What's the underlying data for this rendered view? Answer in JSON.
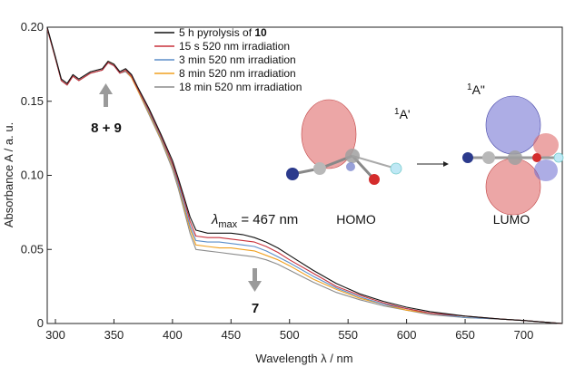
{
  "chart_data": {
    "type": "line",
    "title": "",
    "xlabel": "Wavelength λ / nm",
    "ylabel": "Absorbance A / a. u.",
    "xlim": [
      293,
      733
    ],
    "ylim": [
      0,
      0.2
    ],
    "x_ticks": [
      "300",
      "350",
      "400",
      "450",
      "500",
      "550",
      "600",
      "650",
      "700"
    ],
    "y_ticks": [
      "0",
      "0.05",
      "0.10",
      "0.15",
      "0.20"
    ],
    "grid": false,
    "legend_position": "top-center",
    "series": [
      {
        "name": "5 h pyrolysis of 10",
        "color": "#111111",
        "x": [
          293,
          300,
          305,
          310,
          315,
          320,
          330,
          340,
          345,
          350,
          355,
          360,
          365,
          370,
          380,
          390,
          400,
          405,
          410,
          415,
          420,
          430,
          440,
          450,
          460,
          470,
          480,
          490,
          500,
          520,
          540,
          560,
          580,
          600,
          620,
          650,
          680,
          700,
          733
        ],
        "y": [
          0.2,
          0.18,
          0.165,
          0.162,
          0.168,
          0.165,
          0.17,
          0.172,
          0.177,
          0.175,
          0.17,
          0.172,
          0.168,
          0.16,
          0.145,
          0.128,
          0.11,
          0.098,
          0.085,
          0.072,
          0.063,
          0.061,
          0.061,
          0.061,
          0.06,
          0.058,
          0.055,
          0.051,
          0.046,
          0.036,
          0.027,
          0.02,
          0.015,
          0.011,
          0.008,
          0.005,
          0.003,
          0.002,
          0.0
        ]
      },
      {
        "name": "15 s 520 nm irradiation",
        "color": "#c8323c",
        "x": [
          293,
          300,
          305,
          310,
          315,
          320,
          330,
          340,
          345,
          350,
          355,
          360,
          365,
          370,
          380,
          390,
          400,
          405,
          410,
          415,
          420,
          430,
          440,
          450,
          460,
          470,
          480,
          490,
          500,
          520,
          540,
          560,
          580,
          600,
          620,
          650,
          680,
          700,
          733
        ],
        "y": [
          0.199,
          0.179,
          0.164,
          0.161,
          0.167,
          0.164,
          0.169,
          0.171,
          0.176,
          0.174,
          0.169,
          0.171,
          0.167,
          0.159,
          0.144,
          0.127,
          0.108,
          0.096,
          0.083,
          0.069,
          0.059,
          0.058,
          0.058,
          0.057,
          0.056,
          0.055,
          0.052,
          0.048,
          0.043,
          0.034,
          0.025,
          0.019,
          0.014,
          0.01,
          0.007,
          0.005,
          0.003,
          0.002,
          0.0
        ]
      },
      {
        "name": "3 min 520 nm irradiation",
        "color": "#5b8ec9",
        "x": [
          293,
          300,
          305,
          310,
          315,
          320,
          330,
          340,
          345,
          350,
          355,
          360,
          365,
          370,
          380,
          390,
          400,
          405,
          410,
          415,
          420,
          430,
          440,
          450,
          460,
          470,
          480,
          490,
          500,
          520,
          540,
          560,
          580,
          600,
          620,
          650,
          680,
          700,
          733
        ],
        "y": [
          0.199,
          0.179,
          0.164,
          0.161,
          0.167,
          0.164,
          0.169,
          0.171,
          0.176,
          0.174,
          0.169,
          0.171,
          0.167,
          0.159,
          0.143,
          0.126,
          0.107,
          0.094,
          0.08,
          0.066,
          0.056,
          0.055,
          0.055,
          0.054,
          0.053,
          0.052,
          0.049,
          0.045,
          0.041,
          0.032,
          0.024,
          0.018,
          0.013,
          0.01,
          0.007,
          0.004,
          0.003,
          0.002,
          0.0
        ]
      },
      {
        "name": "8 min 520 nm irradiation",
        "color": "#f0a020",
        "x": [
          293,
          300,
          305,
          310,
          315,
          320,
          330,
          340,
          345,
          350,
          355,
          360,
          365,
          370,
          380,
          390,
          400,
          405,
          410,
          415,
          420,
          430,
          440,
          450,
          460,
          470,
          480,
          490,
          500,
          520,
          540,
          560,
          580,
          600,
          620,
          650,
          680,
          700,
          733
        ],
        "y": [
          0.199,
          0.179,
          0.164,
          0.161,
          0.167,
          0.164,
          0.169,
          0.171,
          0.177,
          0.175,
          0.169,
          0.171,
          0.166,
          0.158,
          0.142,
          0.125,
          0.106,
          0.093,
          0.078,
          0.064,
          0.053,
          0.052,
          0.051,
          0.051,
          0.05,
          0.049,
          0.046,
          0.043,
          0.039,
          0.03,
          0.023,
          0.017,
          0.013,
          0.009,
          0.007,
          0.004,
          0.003,
          0.002,
          0.0
        ]
      },
      {
        "name": "18 min 520 nm irradiation",
        "color": "#8c8c8c",
        "x": [
          293,
          300,
          305,
          310,
          315,
          320,
          330,
          340,
          345,
          350,
          355,
          360,
          365,
          370,
          380,
          390,
          400,
          405,
          410,
          415,
          420,
          430,
          440,
          450,
          460,
          470,
          480,
          490,
          500,
          520,
          540,
          560,
          580,
          600,
          620,
          650,
          680,
          700,
          733
        ],
        "y": [
          0.199,
          0.179,
          0.164,
          0.161,
          0.167,
          0.164,
          0.169,
          0.171,
          0.176,
          0.174,
          0.169,
          0.17,
          0.166,
          0.158,
          0.141,
          0.124,
          0.104,
          0.091,
          0.076,
          0.061,
          0.05,
          0.049,
          0.048,
          0.047,
          0.046,
          0.045,
          0.043,
          0.04,
          0.036,
          0.028,
          0.021,
          0.016,
          0.012,
          0.009,
          0.006,
          0.004,
          0.003,
          0.002,
          0.0
        ]
      }
    ],
    "legend": {
      "entries": [
        {
          "prefix": "5 h pyrolysis of ",
          "bold": "10",
          "color": "#111111"
        },
        {
          "prefix": "15 s 520 nm irradiation",
          "bold": "",
          "color": "#c8323c"
        },
        {
          "prefix": "3 min 520 nm irradiation",
          "bold": "",
          "color": "#5b8ec9"
        },
        {
          "prefix": "8 min 520 nm irradiation",
          "bold": "",
          "color": "#f0a020"
        },
        {
          "prefix": "18 min 520 nm irradiation",
          "bold": "",
          "color": "#8c8c8c"
        }
      ]
    },
    "annotations": {
      "increase_label": "8 + 9",
      "decrease_label": "7",
      "lambda_max_symbol": "λ",
      "lambda_max_sub": "max",
      "lambda_max_value": " = 467 nm",
      "homo_label": "HOMO",
      "lumo_label": "LUMO",
      "homo_state_sup": "1",
      "homo_state": "A'",
      "lumo_state_sup": "1",
      "lumo_state": "A\"",
      "arrow_color": "#9a9a9a"
    }
  }
}
